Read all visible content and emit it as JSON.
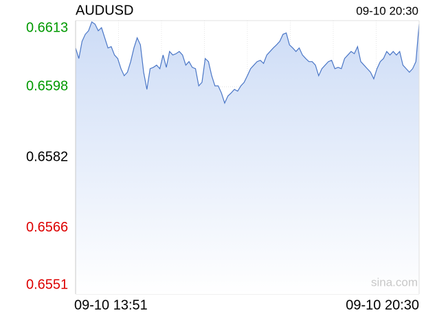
{
  "chart_data": {
    "type": "line",
    "title": "AUDUSD",
    "time": "09-10 20:30",
    "watermark": "sina.com",
    "x": [
      "09-10 13:51",
      null,
      null,
      null,
      null,
      null,
      null,
      null,
      null,
      null,
      null,
      null,
      null,
      null,
      null,
      null,
      null,
      null,
      null,
      null,
      null,
      null,
      null,
      null,
      null,
      null,
      null,
      null,
      null,
      null,
      null,
      null,
      null,
      null,
      null,
      null,
      null,
      null,
      null,
      null,
      null,
      null,
      null,
      null,
      null,
      null,
      null,
      null,
      null,
      null,
      null,
      null,
      null,
      null,
      null,
      null,
      null,
      null,
      null,
      null,
      null,
      null,
      null,
      null,
      null,
      null,
      null,
      null,
      null,
      null,
      null,
      null,
      null,
      null,
      null,
      null,
      null,
      null,
      null,
      null,
      null,
      null,
      null,
      null,
      null,
      null,
      null,
      null,
      null,
      null,
      null,
      null,
      null,
      null,
      null,
      null,
      null,
      null,
      null,
      null,
      null,
      null,
      null,
      null,
      null,
      null,
      "09-10 20:30"
    ],
    "series": [
      {
        "color": "#4a76c6",
        "fill_color": "#cddcf6",
        "values": [
          0.66068,
          0.66044,
          0.66083,
          0.66099,
          0.66107,
          0.66127,
          0.66122,
          0.66107,
          0.66114,
          0.66091,
          0.66068,
          0.66071,
          0.66052,
          0.66044,
          0.66021,
          0.66005,
          0.66013,
          0.66037,
          0.66068,
          0.66091,
          0.66075,
          0.66013,
          0.65974,
          0.66021,
          0.66024,
          0.66029,
          0.66021,
          0.66052,
          0.66024,
          0.6606,
          0.66052,
          0.66055,
          0.6606,
          0.66052,
          0.66029,
          0.66037,
          0.66024,
          0.66021,
          0.65982,
          0.6599,
          0.66044,
          0.66037,
          0.66005,
          0.65982,
          0.65982,
          0.65966,
          0.65943,
          0.65959,
          0.65966,
          0.65974,
          0.6597,
          0.65982,
          0.6599,
          0.66005,
          0.66021,
          0.66029,
          0.66037,
          0.6604,
          0.66033,
          0.66052,
          0.6606,
          0.66068,
          0.66075,
          0.66083,
          0.66099,
          0.66102,
          0.66075,
          0.66068,
          0.6606,
          0.66068,
          0.66052,
          0.66044,
          0.66037,
          0.66037,
          0.66029,
          0.66005,
          0.66021,
          0.66029,
          0.66037,
          0.6604,
          0.66021,
          0.66024,
          0.66021,
          0.66044,
          0.66052,
          0.6606,
          0.66055,
          0.66071,
          0.66037,
          0.66029,
          0.66021,
          0.66013,
          0.65998,
          0.66021,
          0.66037,
          0.66044,
          0.6606,
          0.66052,
          0.6606,
          0.66052,
          0.6606,
          0.66029,
          0.66021,
          0.66013,
          0.66021,
          0.66037,
          0.66122
        ]
      }
    ],
    "ylim": [
      0.6551,
      0.6613
    ],
    "yticks": [
      0.6551,
      0.6566,
      0.6582,
      0.6598,
      0.6613
    ],
    "up_color": "#009900",
    "down_color": "#dd0000",
    "grid": true
  }
}
